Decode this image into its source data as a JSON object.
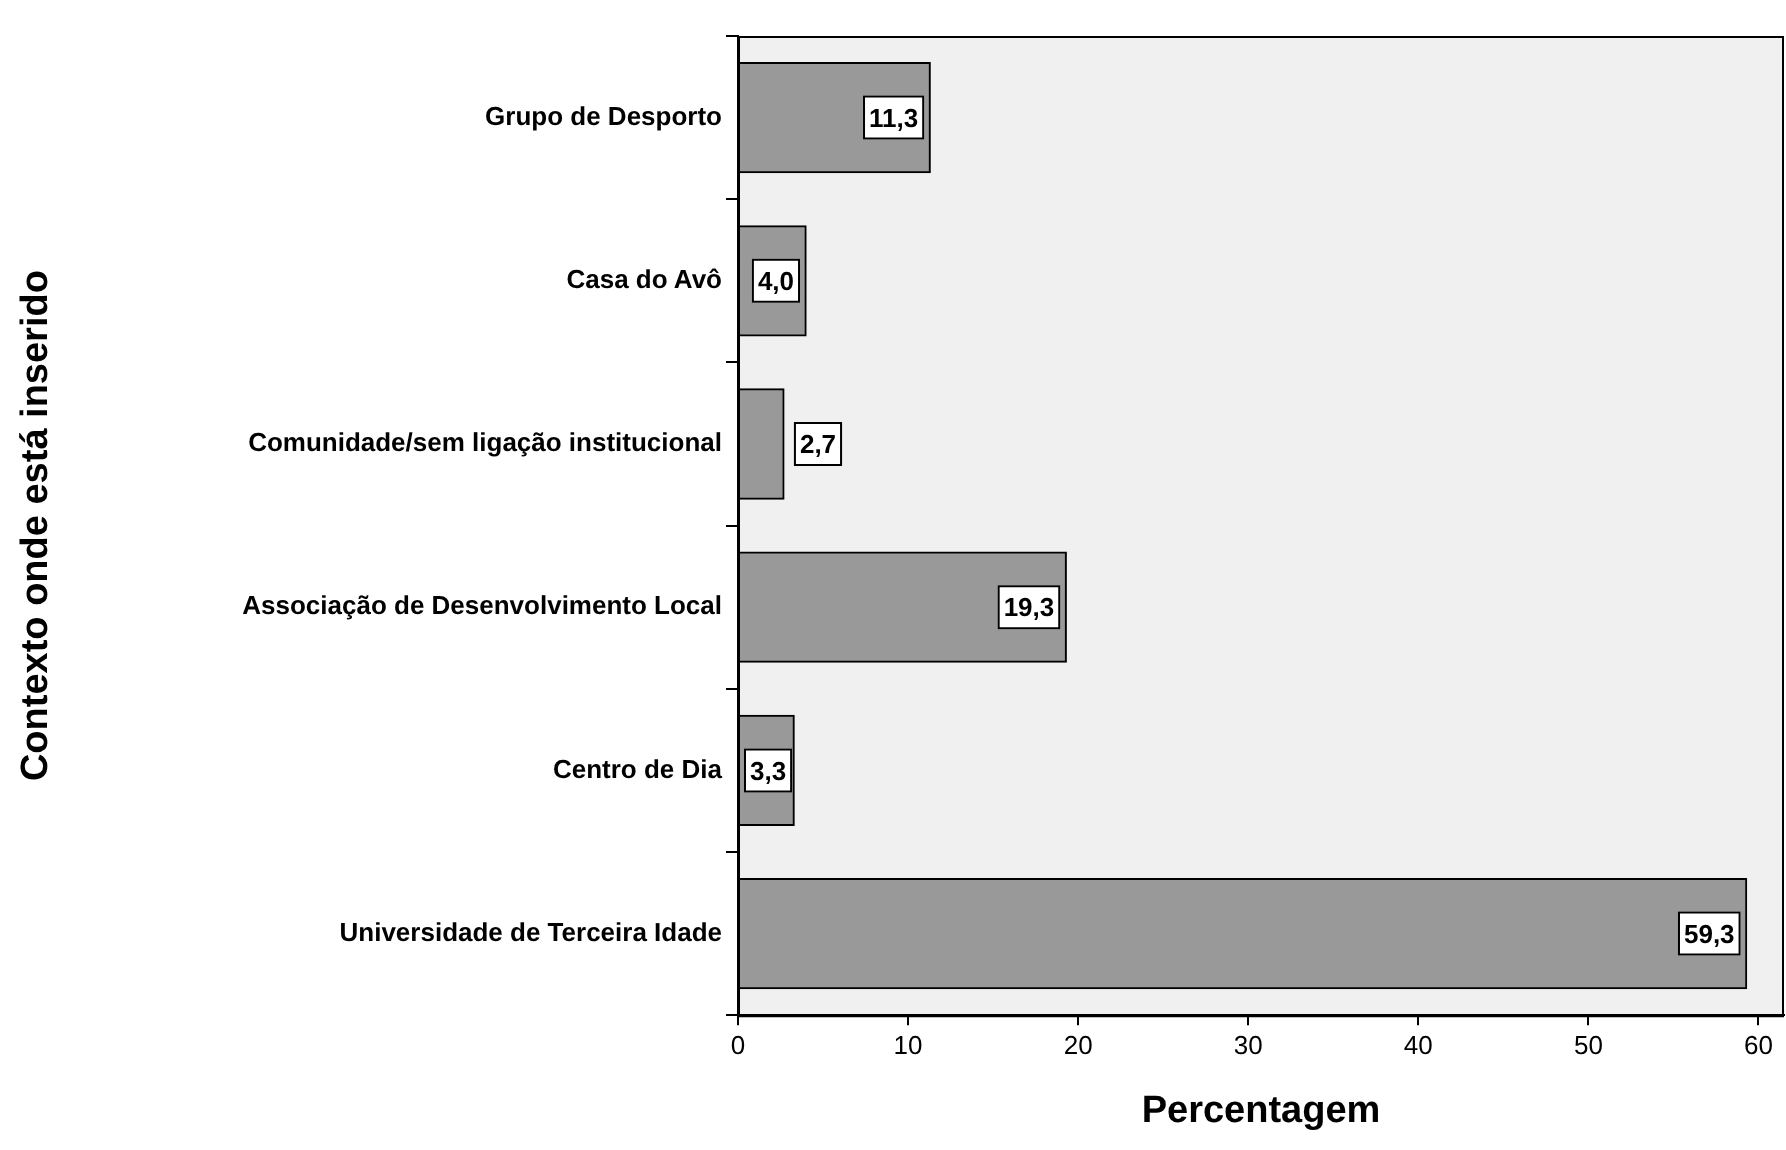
{
  "chart_data": {
    "type": "bar",
    "orientation": "horizontal",
    "ylabel": "Contexto onde está inserido",
    "xlabel": "Percentagem",
    "categories": [
      "Grupo de Desporto",
      "Casa do Avô",
      "Comunidade/sem ligação institucional",
      "Associação de Desenvolvimento Local",
      "Centro de Dia",
      "Universidade de Terceira Idade"
    ],
    "values": [
      11.3,
      4.0,
      2.7,
      19.3,
      3.3,
      59.3
    ],
    "value_labels": [
      "11,3",
      "4,0",
      "2,7",
      "19,3",
      "3,3",
      "59,3"
    ],
    "color": "#999999",
    "xlim": [
      0,
      61.5
    ],
    "xticks": [
      0,
      10,
      20,
      30,
      40,
      50,
      60
    ],
    "legend": false
  }
}
